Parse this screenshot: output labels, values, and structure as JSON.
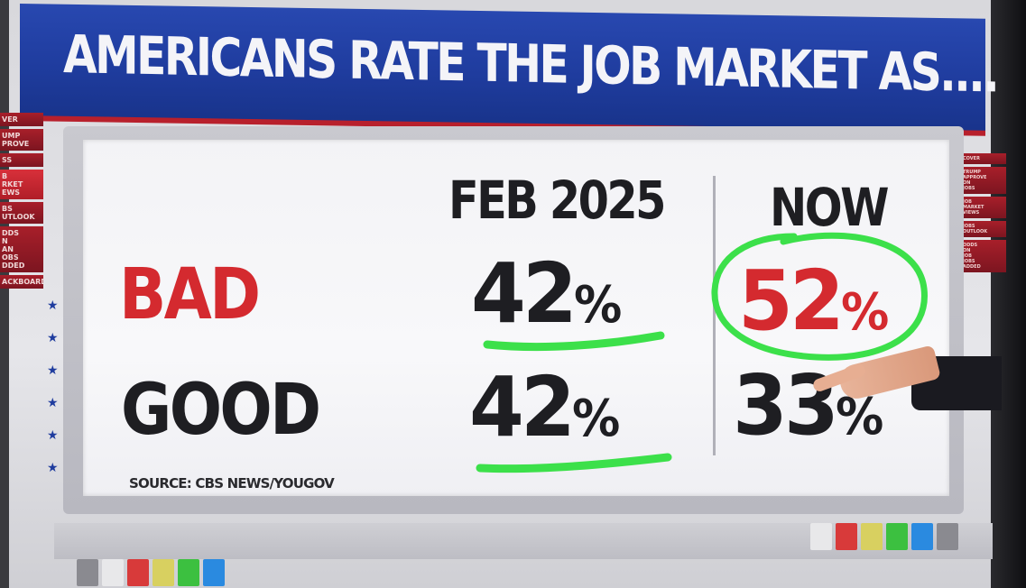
{
  "headline": "AMERICANS RATE THE JOB MARKET AS....",
  "left_nav": [
    {
      "label": "VER",
      "active": false
    },
    {
      "label": "UMP\nPROVE",
      "active": false
    },
    {
      "label": "SS",
      "active": false
    },
    {
      "label": "B\nRKET\nEWS",
      "active": true
    },
    {
      "label": "BS\nUTLOOK",
      "active": false
    },
    {
      "label": "DDS\nN\nAN\nOBS\nDDED",
      "active": false
    },
    {
      "label": "ACKBOARD",
      "active": false
    }
  ],
  "right_nav": [
    {
      "label": "COVER"
    },
    {
      "label": "TRUMP\nAPPROVE\nON\nJOBS"
    },
    {
      "label": "JOB\nMARKET\nVIEWS"
    },
    {
      "label": "JOBS\nOUTLOOK"
    },
    {
      "label": "ODDS\nON\nJOB\nJOBS\nADDED"
    }
  ],
  "table": {
    "columns": [
      "FEB 2025",
      "NOW"
    ],
    "rows": [
      {
        "label": "BAD",
        "label_color": "#d42a2f",
        "values": [
          "42",
          "52"
        ],
        "value_colors": [
          "#1e1e22",
          "#d42a2f"
        ]
      },
      {
        "label": "GOOD",
        "label_color": "#1e1e22",
        "values": [
          "42",
          "33"
        ],
        "value_colors": [
          "#1e1e22",
          "#1e1e22"
        ]
      }
    ],
    "percent_sign": "%"
  },
  "source": "SOURCE: CBS NEWS/YOUGOV",
  "annotations": {
    "highlight_color": "#3ce04a"
  },
  "swatches": [
    "#e8e8ea",
    "#d83a3a",
    "#d8d060",
    "#3cc040",
    "#2a8ae0",
    "#8a8a90"
  ]
}
